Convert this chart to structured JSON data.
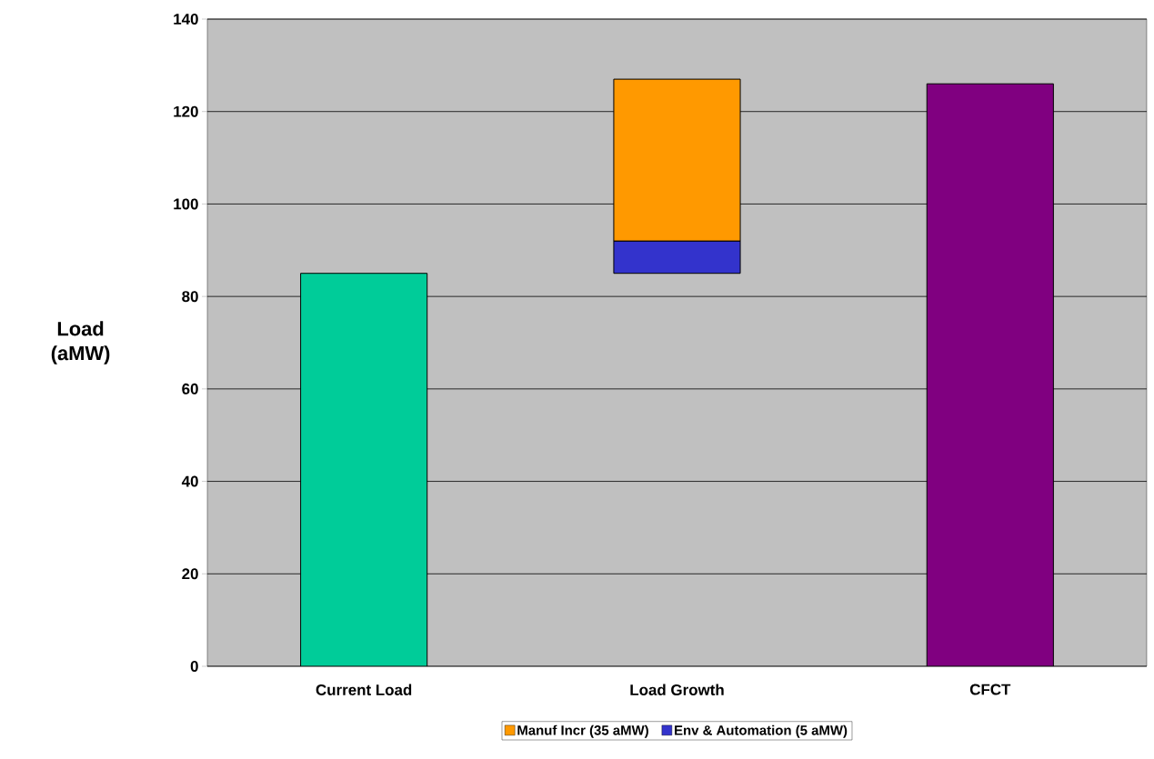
{
  "chart_data": {
    "type": "bar",
    "ylabel": "Load (aMW)",
    "categories": [
      "Current Load",
      "Load Growth",
      "CFCT"
    ],
    "series": [
      {
        "colors": [
          "#00cc99",
          null,
          "#800080"
        ],
        "values": [
          85,
          null,
          126
        ]
      },
      {
        "name": "Env & Automation (5 aMW)",
        "color": "#3333cc",
        "base": [
          null,
          85,
          null
        ],
        "values": [
          null,
          7,
          null
        ]
      },
      {
        "name": "Manuf Incr (35 aMW)",
        "color": "#ff9900",
        "base": [
          null,
          92,
          null
        ],
        "values": [
          null,
          35,
          null
        ]
      }
    ],
    "ylim": [
      0,
      140
    ],
    "yticks": [
      0,
      20,
      40,
      60,
      80,
      100,
      120,
      140
    ],
    "grid": "y",
    "legend": "bottom"
  }
}
